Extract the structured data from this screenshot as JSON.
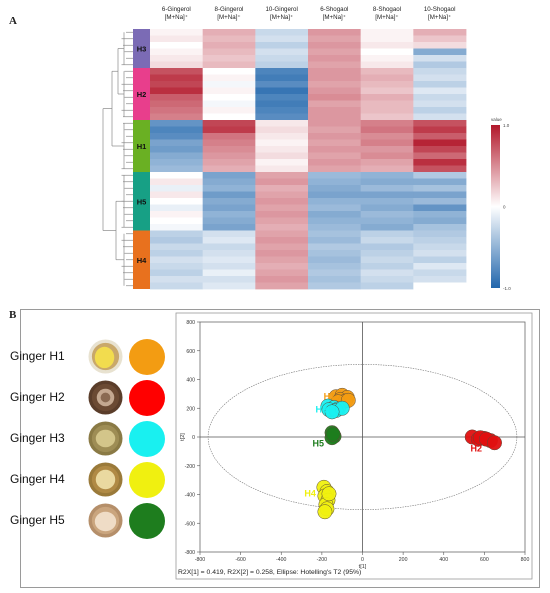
{
  "panel_a_letter": "A",
  "panel_b_letter": "B",
  "chart_data": [
    {
      "type": "heatmap",
      "columns": [
        "6-Gingerol [M+Na]⁺",
        "8-Gingerol [M+Na]⁺",
        "10-Gingerol [M+Na]⁺",
        "6-Shogaol [M+Na]⁺",
        "8-Shogaol [M+Na]⁺",
        "10-Shogaol [M+Na]⁺"
      ],
      "groups": [
        {
          "name": "H3",
          "color": "#7b6bb5",
          "rows": [
            [
              0.05,
              0.35,
              -0.25,
              0.45,
              0.05,
              0.35
            ],
            [
              0.1,
              0.3,
              -0.2,
              0.4,
              0.05,
              0.25
            ],
            [
              0.0,
              0.35,
              -0.3,
              0.45,
              0.1,
              0.15
            ],
            [
              0.05,
              0.3,
              -0.2,
              0.4,
              0.0,
              -0.55
            ],
            [
              0.1,
              0.25,
              -0.25,
              0.45,
              0.05,
              -0.2
            ],
            [
              0.15,
              0.3,
              -0.3,
              0.4,
              0.1,
              -0.35
            ]
          ]
        },
        {
          "name": "H2",
          "color": "#e83e8c",
          "rows": [
            [
              0.75,
              0.0,
              -0.8,
              0.45,
              0.3,
              -0.25
            ],
            [
              0.85,
              0.05,
              -0.85,
              0.45,
              0.35,
              -0.2
            ],
            [
              0.8,
              -0.05,
              -0.75,
              0.4,
              0.3,
              -0.3
            ],
            [
              0.9,
              0.05,
              -0.9,
              0.45,
              0.25,
              -0.15
            ],
            [
              0.7,
              0.0,
              -0.8,
              0.5,
              0.35,
              -0.25
            ],
            [
              0.65,
              -0.05,
              -0.85,
              0.4,
              0.3,
              -0.2
            ],
            [
              0.6,
              0.05,
              -0.8,
              0.45,
              0.3,
              -0.3
            ],
            [
              0.55,
              0.0,
              -0.75,
              0.45,
              0.25,
              -0.2
            ]
          ]
        },
        {
          "name": "H1",
          "color": "#6ab023",
          "rows": [
            [
              -0.7,
              0.8,
              0.1,
              0.45,
              0.55,
              0.75
            ],
            [
              -0.8,
              0.85,
              0.15,
              0.4,
              0.6,
              0.85
            ],
            [
              -0.75,
              0.6,
              0.1,
              0.45,
              0.5,
              0.7
            ],
            [
              -0.6,
              0.55,
              0.05,
              0.4,
              0.55,
              0.95
            ],
            [
              -0.65,
              0.5,
              0.1,
              0.45,
              0.45,
              0.8
            ],
            [
              -0.55,
              0.45,
              0.15,
              0.4,
              0.5,
              0.65
            ],
            [
              -0.5,
              0.4,
              0.05,
              0.45,
              0.4,
              0.9
            ],
            [
              -0.45,
              0.35,
              0.1,
              0.4,
              0.35,
              0.75
            ]
          ]
        },
        {
          "name": "H5",
          "color": "#17a085",
          "rows": [
            [
              0.0,
              -0.6,
              0.4,
              -0.45,
              -0.5,
              -0.35
            ],
            [
              0.1,
              -0.55,
              0.45,
              -0.5,
              -0.55,
              -0.55
            ],
            [
              -0.1,
              -0.5,
              0.35,
              -0.55,
              -0.45,
              -0.4
            ],
            [
              0.1,
              -0.65,
              0.4,
              -0.6,
              -0.6,
              -0.6
            ],
            [
              0.0,
              -0.55,
              0.45,
              -0.5,
              -0.5,
              -0.45
            ],
            [
              -0.1,
              -0.6,
              0.4,
              -0.45,
              -0.55,
              -0.7
            ],
            [
              0.05,
              -0.5,
              0.45,
              -0.55,
              -0.45,
              -0.5
            ],
            [
              0.0,
              -0.55,
              0.4,
              -0.5,
              -0.5,
              -0.55
            ],
            [
              -0.05,
              -0.6,
              0.35,
              -0.45,
              -0.55,
              -0.4
            ]
          ]
        },
        {
          "name": "H4",
          "color": "#e8711e",
          "rows": [
            [
              -0.3,
              -0.2,
              0.4,
              -0.4,
              -0.3,
              -0.35
            ],
            [
              -0.35,
              -0.15,
              0.45,
              -0.45,
              -0.25,
              -0.3
            ],
            [
              -0.25,
              -0.25,
              0.4,
              -0.35,
              -0.35,
              -0.25
            ],
            [
              -0.3,
              -0.2,
              0.45,
              -0.4,
              -0.3,
              -0.2
            ],
            [
              -0.2,
              -0.15,
              0.4,
              -0.45,
              -0.25,
              -0.3
            ],
            [
              -0.25,
              -0.2,
              0.35,
              -0.4,
              -0.3,
              -0.15
            ],
            [
              -0.3,
              -0.1,
              0.4,
              -0.35,
              -0.2,
              -0.25
            ],
            [
              -0.2,
              -0.2,
              0.45,
              -0.4,
              -0.25,
              -0.2
            ],
            [
              -0.25,
              -0.15,
              0.4,
              -0.35,
              -0.3,
              0.0
            ]
          ]
        }
      ],
      "colorbar": {
        "title": "value",
        "ticks": [
          "1.0",
          "0",
          "-1.0"
        ],
        "range": [
          -1,
          1
        ],
        "colors": [
          "#2166ac",
          "#ffffff",
          "#b2182b"
        ]
      }
    },
    {
      "type": "scatter",
      "xlabel": "t[1]",
      "ylabel": "t[2]",
      "xlim": [
        -800,
        800
      ],
      "ylim": [
        -800,
        800
      ],
      "xticks": [
        -800,
        -600,
        -400,
        -200,
        0,
        200,
        400,
        600,
        800
      ],
      "yticks": [
        -800,
        -600,
        -400,
        -200,
        0,
        200,
        400,
        600,
        800
      ],
      "footer": "R2X[1] = 0.419, R2X[2] = 0.258, Ellipse: Hotelling's T2 (95%)",
      "ellipse": {
        "center": [
          0,
          0
        ],
        "radius": [
          760,
          505
        ]
      },
      "series": [
        {
          "name": "H1",
          "color": "#f39c12",
          "points": [
            [
              -130,
              280
            ],
            [
              -100,
              290
            ],
            [
              -75,
              275
            ],
            [
              -110,
              260
            ],
            [
              -85,
              250
            ],
            [
              -120,
              245
            ],
            [
              -70,
              255
            ]
          ]
        },
        {
          "name": "H3",
          "color": "#19f0f0",
          "points": [
            [
              -170,
              215
            ],
            [
              -140,
              205
            ],
            [
              -120,
              195
            ],
            [
              -165,
              190
            ],
            [
              -130,
              185
            ],
            [
              -100,
              200
            ],
            [
              -150,
              175
            ]
          ]
        },
        {
          "name": "H5",
          "color": "#1e7d1e",
          "points": [
            [
              -150,
              30
            ],
            [
              -145,
              15
            ],
            [
              -140,
              5
            ],
            [
              -150,
              -5
            ],
            [
              -145,
              20
            ]
          ]
        },
        {
          "name": "H2",
          "color": "#e01010",
          "points": [
            [
              540,
              0
            ],
            [
              570,
              -15
            ],
            [
              600,
              -10
            ],
            [
              630,
              -25
            ],
            [
              580,
              -5
            ],
            [
              610,
              -15
            ],
            [
              650,
              -40
            ]
          ]
        },
        {
          "name": "H4",
          "color": "#f0f010",
          "points": [
            [
              -190,
              -350
            ],
            [
              -175,
              -380
            ],
            [
              -185,
              -410
            ],
            [
              -170,
              -440
            ],
            [
              -180,
              -470
            ],
            [
              -175,
              -500
            ],
            [
              -185,
              -520
            ],
            [
              -165,
              -395
            ]
          ]
        }
      ]
    }
  ],
  "legend_b": [
    {
      "label": "Ginger H1",
      "color": "#f39c12",
      "photo": {
        "outer": "#c9a86a",
        "inner": "#f2dc4e",
        "ring": "#e8e2d0"
      }
    },
    {
      "label": "Ginger H2",
      "color": "#ff0000",
      "photo": {
        "outer": "#6b4a33",
        "inner": "#c4a890",
        "ring": "#5a3d2a"
      }
    },
    {
      "label": "Ginger H3",
      "color": "#19f0f0",
      "photo": {
        "outer": "#9e8d55",
        "inner": "#d3c58a",
        "ring": "#8a7a45"
      }
    },
    {
      "label": "Ginger H4",
      "color": "#f0f010",
      "photo": {
        "outer": "#b08a45",
        "inner": "#ead9a0",
        "ring": "#9a7a3a"
      }
    },
    {
      "label": "Ginger H5",
      "color": "#1e7d1e",
      "photo": {
        "outer": "#caa57e",
        "inner": "#efdcc6",
        "ring": "#b58f6a"
      }
    }
  ]
}
